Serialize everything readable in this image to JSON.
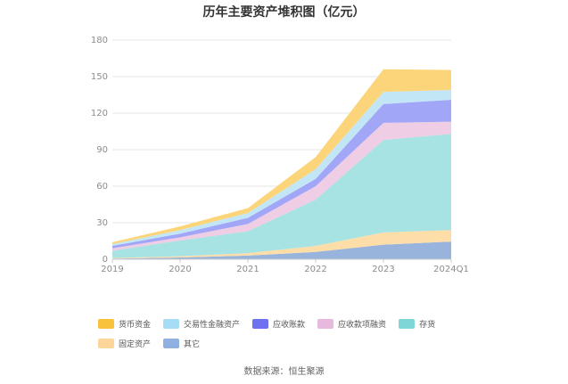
{
  "chart_data": {
    "type": "area",
    "stacked": true,
    "title": "历年主要资产堆积图（亿元）",
    "x": [
      "2019",
      "2020",
      "2021",
      "2022",
      "2023",
      "2024Q1"
    ],
    "ylim": [
      0,
      180
    ],
    "yticks": [
      0,
      30,
      60,
      90,
      120,
      150,
      180
    ],
    "grid": true,
    "legend_position": "bottom",
    "series": [
      {
        "name": "其它",
        "color": "#98B4DC",
        "values": [
          0.5,
          1.5,
          3.0,
          6.0,
          12.0,
          14.5
        ]
      },
      {
        "name": "固定资产",
        "color": "#FDDDA8",
        "values": [
          0.5,
          1.0,
          2.0,
          5.0,
          10.0,
          9.5
        ]
      },
      {
        "name": "存货",
        "color": "#A8E3E3",
        "values": [
          6.0,
          13.0,
          18.0,
          38.0,
          76.0,
          79.0
        ]
      },
      {
        "name": "应收款项融资",
        "color": "#EFCDE4",
        "values": [
          2.0,
          2.5,
          6.0,
          11.0,
          14.0,
          10.0
        ]
      },
      {
        "name": "应收账款",
        "color": "#A1A6F6",
        "values": [
          2.0,
          3.0,
          5.0,
          6.0,
          15.5,
          18.0
        ]
      },
      {
        "name": "交易性金融资产",
        "color": "#C3E6F6",
        "values": [
          1.5,
          3.0,
          4.0,
          8.0,
          10.0,
          8.0
        ]
      },
      {
        "name": "货币资金",
        "color": "#FCD57B",
        "values": [
          1.5,
          3.0,
          4.0,
          10.0,
          18.5,
          16.5
        ]
      }
    ]
  },
  "legend": {
    "items": [
      {
        "label": "货币资金",
        "color": "#F8C33A"
      },
      {
        "label": "交易性金融资产",
        "color": "#A6DCF5"
      },
      {
        "label": "应收账款",
        "color": "#6E71F0"
      },
      {
        "label": "应收款项融资",
        "color": "#E6B9DD"
      },
      {
        "label": "存货",
        "color": "#7FD6D6"
      },
      {
        "label": "固定资产",
        "color": "#FDD59A"
      },
      {
        "label": "其它",
        "color": "#8FB0E0"
      }
    ]
  },
  "source_note": "数据来源：恒生聚源"
}
